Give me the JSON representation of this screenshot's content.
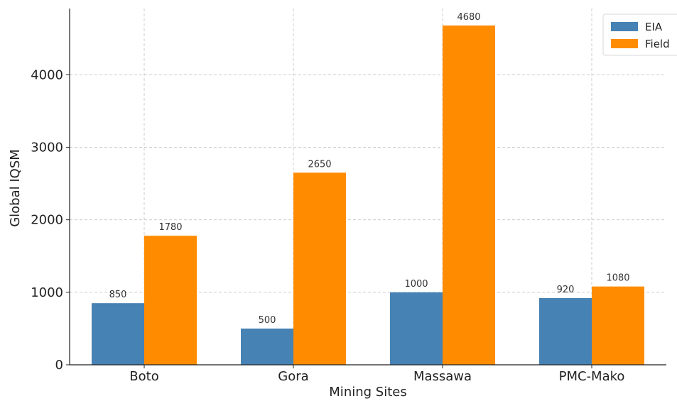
{
  "chart_data": {
    "type": "bar",
    "title": "",
    "xlabel": "Mining Sites",
    "ylabel": "Global IQSM",
    "categories": [
      "Boto",
      "Gora",
      "Massawa",
      "PMC-Mako"
    ],
    "series": [
      {
        "name": "EIA",
        "values": [
          850,
          500,
          1000,
          920
        ],
        "color": "#4682B4"
      },
      {
        "name": "Field",
        "values": [
          1780,
          2650,
          4680,
          1080
        ],
        "color": "#FF8C00"
      }
    ],
    "ylim": [
      0,
      4914
    ],
    "yticks": [
      0,
      1000,
      2000,
      3000,
      4000
    ],
    "grid": true,
    "legend_position": "top-right",
    "data_labels": true
  }
}
